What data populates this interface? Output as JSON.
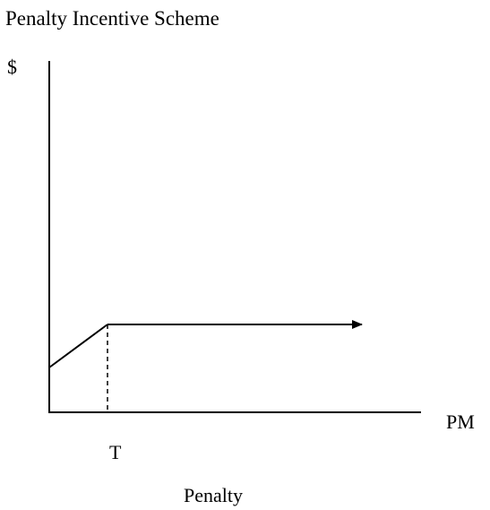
{
  "title": "Penalty Incentive Scheme",
  "y_axis_label": "$",
  "x_axis_label": "PM",
  "threshold_label": "T",
  "caption": "Penalty"
}
